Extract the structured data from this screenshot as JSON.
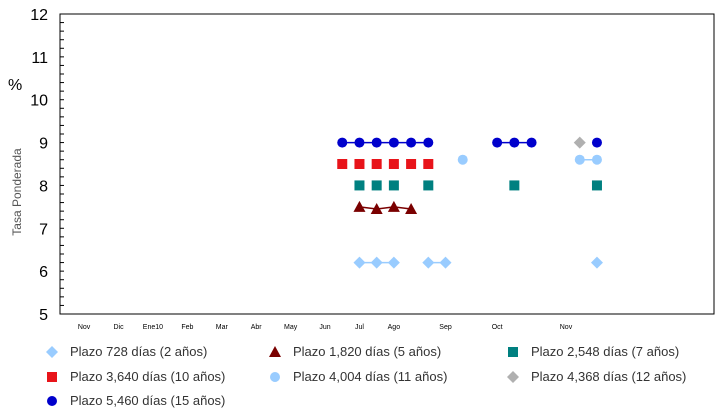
{
  "chart_data": {
    "type": "scatter",
    "ylabel": "Tasa Ponderada",
    "y_unit": "%",
    "ylim": [
      5,
      12
    ],
    "y_ticks": [
      "5",
      "6",
      "7",
      "8",
      "9",
      "10",
      "11",
      "12"
    ],
    "grid": false,
    "legend_position": "bottom",
    "month_labels": [
      "Nov",
      "Dic",
      "Ene10",
      "Feb",
      "Mar",
      "Abr",
      "May",
      "Jun",
      "Jul",
      "Ago",
      "Sep",
      "Oct",
      "Nov"
    ],
    "month_label_positions": [
      0.7,
      1.7,
      2.7,
      3.7,
      4.7,
      5.7,
      6.7,
      7.7,
      8.7,
      9.7,
      11.2,
      12.7,
      14.7
    ],
    "series": [
      {
        "name": "Plazo 728 días (2 años)",
        "marker": "diamond",
        "color": "#99ccff",
        "x": [
          8.7,
          9.2,
          9.7,
          10.7,
          11.2,
          15.6
        ],
        "y": [
          6.2,
          6.2,
          6.2,
          6.2,
          6.2,
          6.2
        ],
        "connected": true
      },
      {
        "name": "Plazo 1,820 días (5 años)",
        "marker": "triangle",
        "color": "#7a0000",
        "x": [
          8.7,
          9.2,
          9.7,
          10.2
        ],
        "y": [
          7.5,
          7.45,
          7.5,
          7.45
        ],
        "connected": true
      },
      {
        "name": "Plazo 2,548 días (7 años)",
        "marker": "square",
        "color": "#008080",
        "x": [
          8.7,
          9.2,
          9.7,
          10.7,
          13.2,
          15.6
        ],
        "y": [
          8.0,
          8.0,
          8.0,
          8.0,
          8.0,
          8.0
        ],
        "connected": false
      },
      {
        "name": "Plazo 3,640 días (10 años)",
        "marker": "square",
        "color": "#e8141a",
        "x": [
          8.2,
          8.7,
          9.2,
          9.7,
          10.2,
          10.7
        ],
        "y": [
          8.5,
          8.5,
          8.5,
          8.5,
          8.5,
          8.5
        ],
        "connected": false
      },
      {
        "name": "Plazo 4,004 días (11 años)",
        "marker": "circle",
        "color": "#99ccff",
        "x": [
          11.7,
          15.1,
          15.6
        ],
        "y": [
          8.6,
          8.6,
          8.6
        ],
        "connected": true
      },
      {
        "name": "Plazo 4,368 días (12 años)",
        "marker": "diamond",
        "color": "#b0b0b0",
        "x": [
          15.1
        ],
        "y": [
          9.0
        ],
        "connected": false
      },
      {
        "name": "Plazo 5,460 días (15 años)",
        "marker": "circle",
        "color": "#0000cc",
        "x": [
          8.2,
          8.7,
          9.2,
          9.7,
          10.2,
          10.7,
          12.7,
          13.2,
          13.7,
          15.6
        ],
        "y": [
          9.0,
          9.0,
          9.0,
          9.0,
          9.0,
          9.0,
          9.0,
          9.0,
          9.0,
          9.0
        ],
        "connected": true
      }
    ]
  }
}
